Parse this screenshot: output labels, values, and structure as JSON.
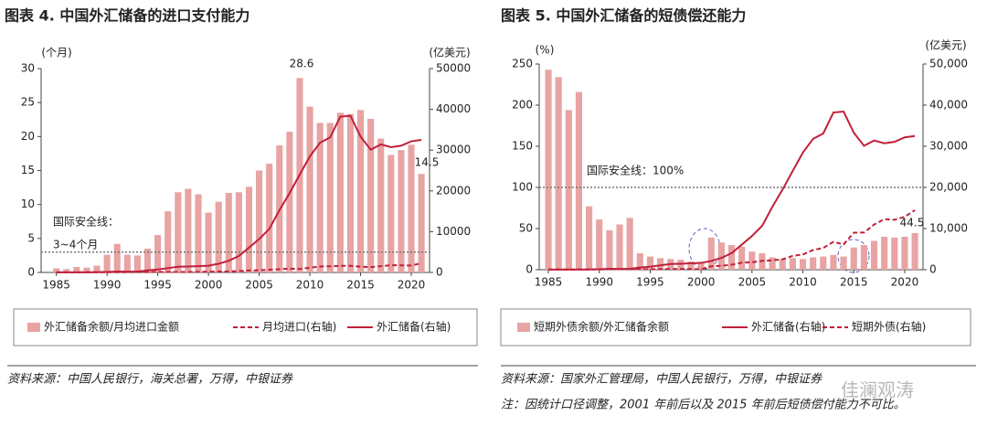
{
  "chart_data": [
    {
      "type": "combo",
      "title": "图表 4. 中国外汇储备的进口支付能力",
      "ylabel": "(个月)",
      "y2label": "(亿美元)",
      "x": [
        1985,
        1986,
        1987,
        1988,
        1989,
        1990,
        1991,
        1992,
        1993,
        1994,
        1995,
        1996,
        1997,
        1998,
        1999,
        2000,
        2001,
        2002,
        2003,
        2004,
        2005,
        2006,
        2007,
        2008,
        2009,
        2010,
        2011,
        2012,
        2013,
        2014,
        2015,
        2016,
        2017,
        2018,
        2019,
        2020,
        2021
      ],
      "xlim": [
        1983.5,
        2021.8
      ],
      "xticks": [
        1985,
        1990,
        1995,
        2000,
        2005,
        2010,
        2015,
        2020
      ],
      "ylim": [
        0,
        30
      ],
      "yticks": [
        0,
        5,
        10,
        15,
        20,
        25,
        30
      ],
      "y2lim": [
        0,
        50000
      ],
      "y2ticks": [
        0,
        10000,
        20000,
        30000,
        40000,
        50000
      ],
      "reference_line": 3,
      "annotations": [
        "28.6",
        "14.5",
        "国际安全线：",
        "3~4个月"
      ],
      "series": [
        {
          "name": "外汇储备余额/月均进口金额",
          "type": "bar",
          "color": "#e8a3a3",
          "values": [
            0.6,
            0.5,
            0.8,
            0.7,
            1.0,
            2.6,
            4.2,
            2.6,
            2.5,
            3.5,
            5.5,
            9.0,
            11.8,
            12.3,
            11.5,
            8.8,
            10.4,
            11.7,
            11.8,
            12.6,
            15.0,
            16.0,
            18.7,
            20.7,
            28.6,
            24.4,
            22.0,
            22.0,
            23.5,
            23.3,
            23.9,
            22.6,
            19.7,
            17.3,
            18.0,
            18.8,
            14.5
          ]
        },
        {
          "name": "月均进口(右轴)",
          "type": "line",
          "dashed": true,
          "axis": "y2",
          "color": "#c0203a",
          "values": [
            35,
            36,
            36,
            46,
            49,
            44,
            53,
            67,
            87,
            96,
            110,
            116,
            119,
            117,
            138,
            188,
            203,
            246,
            345,
            467,
            550,
            660,
            796,
            943,
            838,
            1163,
            1450,
            1515,
            1623,
            1633,
            1398,
            1330,
            1534,
            1784,
            1728,
            1717,
            2240
          ]
        },
        {
          "name": "外汇储备(右轴)",
          "type": "line",
          "dashed": false,
          "axis": "y2",
          "color": "#c0203a",
          "values": [
            26,
            21,
            29,
            34,
            56,
            111,
            217,
            194,
            212,
            516,
            736,
            1050,
            1399,
            1450,
            1547,
            1656,
            2122,
            2864,
            4033,
            6099,
            8189,
            10663,
            15282,
            19460,
            23992,
            28473,
            31811,
            33116,
            38213,
            38430,
            33304,
            30105,
            31399,
            30727,
            31079,
            32165,
            32502
          ]
        }
      ],
      "source": "资料来源：中国人民银行，海关总署，万得，中银证券"
    },
    {
      "type": "combo",
      "title": "图表 5. 中国外汇储备的短债偿还能力",
      "ylabel": "(%)",
      "y2label": "(亿美元)",
      "x": [
        1985,
        1986,
        1987,
        1988,
        1989,
        1990,
        1991,
        1992,
        1993,
        1994,
        1995,
        1996,
        1997,
        1998,
        1999,
        2000,
        2001,
        2002,
        2003,
        2004,
        2005,
        2006,
        2007,
        2008,
        2009,
        2010,
        2011,
        2012,
        2013,
        2014,
        2015,
        2016,
        2017,
        2018,
        2019,
        2020,
        2021
      ],
      "xlim": [
        1984.1,
        2021.8
      ],
      "xticks": [
        1985,
        1990,
        1995,
        2000,
        2005,
        2010,
        2015,
        2020
      ],
      "ylim": [
        0,
        250
      ],
      "yticks": [
        0,
        50,
        100,
        150,
        200,
        250
      ],
      "y2lim": [
        0,
        50000
      ],
      "y2ticks": [
        0,
        {
          "value": 10000,
          "label": "10,000"
        },
        {
          "value": 20000,
          "label": "20,000"
        },
        {
          "value": 30000,
          "label": "30,000"
        },
        {
          "value": 40000,
          "label": "40,000"
        },
        {
          "value": 50000,
          "label": "50,000"
        }
      ],
      "reference_line": 100,
      "annotations": [
        "国际安全线：100%",
        "44.5"
      ],
      "series": [
        {
          "name": "短期外债余额/外汇储备余额",
          "type": "bar",
          "color": "#e8a3a3",
          "values": [
            243,
            234,
            194,
            216,
            77,
            61,
            48,
            55,
            63,
            20,
            16,
            14,
            13,
            12,
            10,
            8,
            39,
            33,
            30,
            28,
            22,
            20,
            15,
            13,
            14,
            13,
            15,
            16,
            18,
            16,
            27,
            30,
            35,
            40,
            39,
            40,
            44.5
          ]
        },
        {
          "name": "外汇储备(右轴)",
          "type": "line",
          "dashed": false,
          "axis": "y2",
          "color": "#c0203a",
          "values": [
            26,
            21,
            29,
            34,
            56,
            111,
            217,
            194,
            212,
            516,
            736,
            1050,
            1399,
            1450,
            1547,
            1656,
            2122,
            2864,
            4033,
            6099,
            8189,
            10663,
            15282,
            19460,
            23992,
            28473,
            31811,
            33116,
            38213,
            38430,
            33304,
            30105,
            31399,
            30727,
            31079,
            32165,
            32502
          ]
        },
        {
          "name": "短期外债(右轴)",
          "type": "line",
          "dashed": true,
          "axis": "y2",
          "color": "#c0203a",
          "values": [
            63,
            49,
            56,
            73,
            43,
            68,
            104,
            107,
            134,
            103,
            118,
            147,
            182,
            174,
            155,
            130,
            828,
            945,
            1210,
            1708,
            1802,
            2133,
            2292,
            2530,
            3359,
            3701,
            4772,
            5298,
            6766,
            6149,
            8992,
            9031,
            10990,
            12291,
            12121,
            12866,
            14463
          ]
        }
      ],
      "source": "资料来源：国家外汇管理局，中国人民银行，万得，中银证券",
      "note": "注：因统计口径调整，2001 年前后以及 2015 年前后短债偿付能力不可比。"
    }
  ],
  "watermark": "佳澜观涛"
}
